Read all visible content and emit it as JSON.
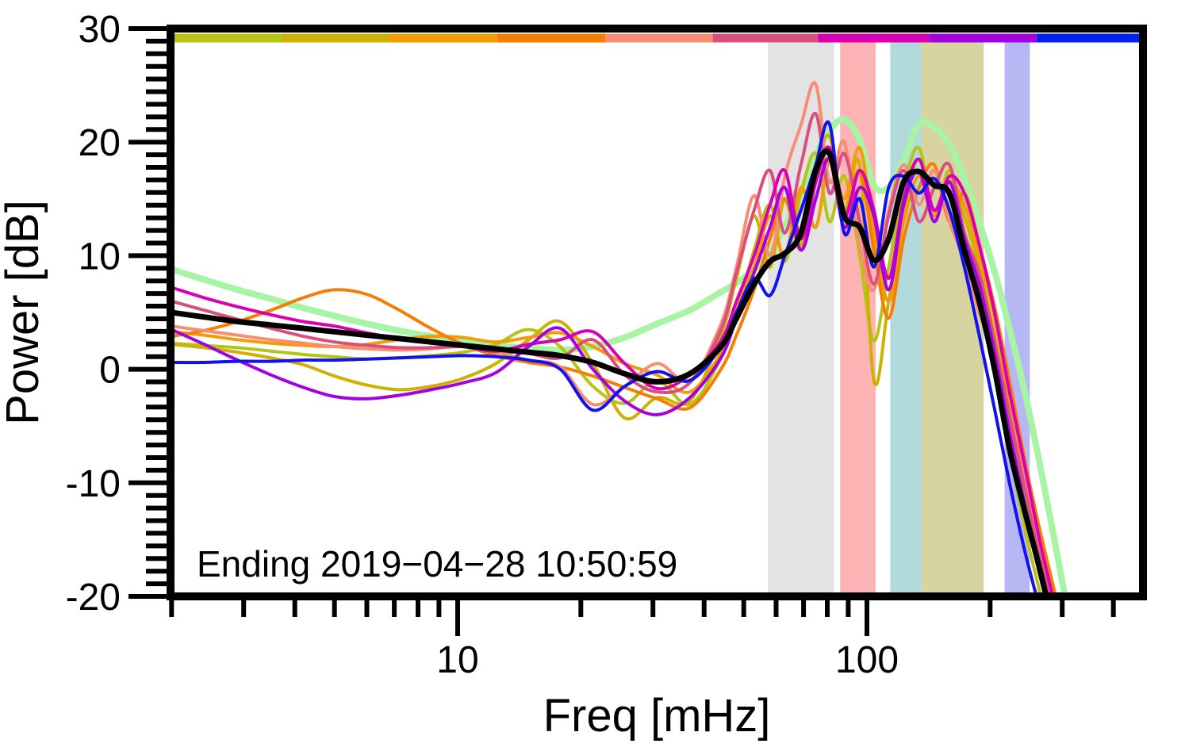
{
  "figure": {
    "background": "#ffffff",
    "annotation": "Ending 2019−04−28 10:50:59",
    "xlabel": "Freq [mHz]",
    "ylabel": "Power [dB]"
  },
  "chart_data": {
    "type": "line",
    "title": "",
    "xlabel": "Freq [mHz]",
    "ylabel": "Power [dB]",
    "x_scale": "log",
    "x_range_mhz": [
      2,
      472
    ],
    "y_range_db": [
      -20,
      30
    ],
    "grid": false,
    "legend": "none",
    "x_ticks_major": [
      10,
      100
    ],
    "x_tick_labels": [
      "10",
      "100"
    ],
    "x_ticks_minor": [
      2,
      3,
      4,
      5,
      6,
      7,
      8,
      9,
      20,
      30,
      40,
      50,
      60,
      70,
      80,
      90,
      200,
      300,
      400
    ],
    "y_ticks_major": [
      30,
      20,
      10,
      0,
      -10,
      -20
    ],
    "y_tick_labels": [
      "30",
      "20",
      "10",
      "0",
      "-10",
      "-20"
    ],
    "y_minor_intervals_per_major": 9,
    "x_mhz": [
      2.0,
      2.4,
      2.9,
      3.5,
      4.2,
      5.0,
      6.0,
      7.2,
      8.6,
      10.3,
      12.4,
      14.9,
      17.8,
      21.4,
      25.6,
      30.7,
      36.9,
      44,
      48,
      53,
      58,
      63,
      69,
      75,
      81,
      88,
      96,
      104,
      113,
      123,
      134,
      146,
      159,
      173,
      188,
      205,
      223,
      243,
      264,
      287,
      312
    ],
    "series": [
      {
        "name": "reference-envelope",
        "color": "#a7f4a5",
        "width": 8,
        "values": [
          8.8,
          7.9,
          7.0,
          6.2,
          5.4,
          4.7,
          4.0,
          3.4,
          2.9,
          2.5,
          2.1,
          1.9,
          1.7,
          2.0,
          2.8,
          4.0,
          5.2,
          6.8,
          7.6,
          8.8,
          10.4,
          12.6,
          15.6,
          18.8,
          21.0,
          22.0,
          20.2,
          16.2,
          16.0,
          18.4,
          21.6,
          21.3,
          19.8,
          16.8,
          13.0,
          8.6,
          3.6,
          -2.0,
          -8.2,
          -15.0,
          -22.0
        ]
      },
      {
        "name": "segment-1",
        "color": "#b7c414",
        "width": 4,
        "values": [
          2.3,
          2.1,
          1.9,
          1.6,
          1.3,
          1.1,
          0.9,
          1.0,
          1.2,
          1.5,
          2.2,
          3.5,
          2.0,
          -1.5,
          -3.0,
          -1.0,
          -3.1,
          1.0,
          5.0,
          10.5,
          14.5,
          9.5,
          15.5,
          19.0,
          13.0,
          17.0,
          10.0,
          2.5,
          9.0,
          16.0,
          19.5,
          13.5,
          17.5,
          12.0,
          7.0,
          0.5,
          -7.0,
          -14.0,
          -19.5,
          -25.0,
          -30.0
        ]
      },
      {
        "name": "segment-2",
        "color": "#cfb005",
        "width": 4,
        "values": [
          2.2,
          1.9,
          1.5,
          1.0,
          0.4,
          -0.6,
          -1.4,
          -1.8,
          -1.5,
          -0.8,
          0.5,
          2.6,
          4.2,
          0.5,
          -4.3,
          -2.5,
          -2.8,
          3.0,
          8.0,
          13.5,
          9.0,
          15.0,
          11.0,
          17.5,
          20.5,
          14.0,
          18.0,
          -1.0,
          6.0,
          14.0,
          18.5,
          13.5,
          17.0,
          13.5,
          9.0,
          3.0,
          -4.0,
          -11.0,
          -17.0,
          -22.0,
          -27.0
        ]
      },
      {
        "name": "segment-3",
        "color": "#f29c07",
        "width": 4,
        "values": [
          3.3,
          3.0,
          2.6,
          2.3,
          2.1,
          2.0,
          2.2,
          2.6,
          2.9,
          2.8,
          2.4,
          2.8,
          3.2,
          2.0,
          0.5,
          -0.5,
          -2.0,
          1.5,
          5.5,
          9.0,
          13.5,
          10.0,
          16.0,
          12.5,
          18.5,
          15.0,
          19.5,
          12.0,
          6.0,
          13.0,
          17.0,
          13.5,
          16.5,
          14.5,
          10.0,
          4.5,
          -2.5,
          -9.0,
          -15.0,
          -20.5,
          -26.0
        ]
      },
      {
        "name": "segment-4",
        "color": "#f57e04",
        "width": 4,
        "values": [
          2.9,
          3.4,
          4.2,
          5.2,
          6.3,
          7.0,
          6.6,
          5.2,
          3.6,
          2.2,
          1.2,
          0.6,
          0.2,
          -0.6,
          -1.6,
          -2.6,
          -3.4,
          0.0,
          3.0,
          7.0,
          11.5,
          15.0,
          10.5,
          16.5,
          19.0,
          13.5,
          17.5,
          10.5,
          4.5,
          11.5,
          16.0,
          18.0,
          13.0,
          15.5,
          11.0,
          5.5,
          -1.0,
          -8.0,
          -14.0,
          -19.5,
          -25.0
        ]
      },
      {
        "name": "segment-5",
        "color": "#f98d73",
        "width": 4,
        "values": [
          3.8,
          3.4,
          3.0,
          2.6,
          2.3,
          2.0,
          1.8,
          1.7,
          1.8,
          2.0,
          1.5,
          0.8,
          0.2,
          -3.1,
          -1.5,
          0.5,
          -1.0,
          4.0,
          9.0,
          15.3,
          10.0,
          17.0,
          21.5,
          25.1,
          16.5,
          20.0,
          11.0,
          7.0,
          14.0,
          18.0,
          14.5,
          17.5,
          13.0,
          9.5,
          5.0,
          1.0,
          -4.5,
          -9.5,
          -16.0,
          -21.0,
          -26.0
        ]
      },
      {
        "name": "segment-6",
        "color": "#d94f7e",
        "width": 4,
        "values": [
          6.0,
          5.2,
          4.4,
          3.6,
          2.9,
          2.4,
          2.1,
          1.9,
          1.9,
          2.0,
          1.8,
          1.4,
          1.0,
          2.6,
          -0.5,
          -2.0,
          -1.2,
          3.5,
          8.5,
          14.0,
          17.5,
          12.0,
          18.0,
          22.5,
          15.5,
          19.0,
          13.0,
          7.5,
          13.5,
          17.5,
          13.0,
          16.0,
          18.0,
          12.0,
          8.5,
          2.5,
          -4.0,
          -10.5,
          -16.5,
          -21.5,
          -26.0
        ]
      },
      {
        "name": "segment-7",
        "color": "#d800b2",
        "width": 4,
        "values": [
          7.2,
          6.3,
          5.5,
          4.8,
          4.2,
          3.8,
          3.2,
          2.7,
          2.3,
          2.0,
          1.6,
          2.2,
          2.6,
          3.3,
          0.5,
          -1.7,
          -0.5,
          2.5,
          6.0,
          10.0,
          14.5,
          17.5,
          11.5,
          16.5,
          19.5,
          13.5,
          17.5,
          14.0,
          8.0,
          15.0,
          18.5,
          14.0,
          17.0,
          15.5,
          11.0,
          5.0,
          -2.0,
          -8.5,
          -15.0,
          -20.5,
          -25.0
        ]
      },
      {
        "name": "segment-8",
        "color": "#a403e0",
        "width": 4,
        "values": [
          3.5,
          2.2,
          0.8,
          -0.5,
          -1.6,
          -2.4,
          -2.6,
          -2.3,
          -1.8,
          -1.2,
          -0.3,
          2.0,
          3.6,
          0.0,
          -2.8,
          -4.0,
          -2.5,
          1.0,
          4.5,
          8.5,
          12.5,
          16.0,
          10.5,
          15.0,
          18.5,
          12.5,
          16.0,
          13.5,
          7.0,
          14.5,
          17.5,
          13.0,
          16.5,
          11.5,
          7.5,
          1.5,
          -5.5,
          -12.0,
          -18.0,
          -23.0,
          -28.0
        ]
      },
      {
        "name": "segment-9",
        "color": "#1212ef",
        "width": 4,
        "values": [
          0.6,
          0.6,
          0.7,
          0.7,
          0.8,
          0.8,
          0.9,
          1.0,
          1.1,
          1.2,
          1.1,
          0.8,
          0.0,
          -3.6,
          -1.5,
          -0.2,
          -1.0,
          2.0,
          5.0,
          8.0,
          6.5,
          10.0,
          14.0,
          18.0,
          21.6,
          12.0,
          15.0,
          9.0,
          16.0,
          17.0,
          15.5,
          16.8,
          14.0,
          9.0,
          3.0,
          -3.5,
          -10.0,
          -16.0,
          -21.0,
          -26.0,
          -30.0
        ]
      },
      {
        "name": "mean-spectrum",
        "color": "#000000",
        "width": 7,
        "values": [
          5.0,
          4.6,
          4.2,
          3.9,
          3.6,
          3.3,
          3.0,
          2.7,
          2.4,
          2.1,
          1.8,
          1.5,
          1.2,
          0.6,
          -0.4,
          -1.1,
          -0.4,
          2.0,
          4.5,
          7.5,
          9.5,
          10.2,
          12.0,
          17.5,
          19.0,
          13.5,
          12.5,
          9.6,
          11.5,
          16.5,
          17.4,
          16.2,
          15.5,
          10.5,
          6.0,
          0.0,
          -7.0,
          -12.5,
          -17.5,
          -23.0,
          -28.0
        ]
      }
    ],
    "bands": [
      {
        "name": "band-gray",
        "from_mhz": 57.3,
        "to_mhz": 83.2,
        "color": "#e3e3e3"
      },
      {
        "name": "band-pink",
        "from_mhz": 86.0,
        "to_mhz": 105.0,
        "color": "#fcb3b3"
      },
      {
        "name": "band-teal",
        "from_mhz": 114.0,
        "to_mhz": 136.0,
        "color": "#b2d9dc"
      },
      {
        "name": "band-olive",
        "from_mhz": 136.0,
        "to_mhz": 193.0,
        "color": "#d8d4a0"
      },
      {
        "name": "band-lavender",
        "from_mhz": 217.0,
        "to_mhz": 250.0,
        "color": "#b7b7f3"
      }
    ],
    "colorbar_segments": [
      {
        "from_mhz": 2.0,
        "to_mhz": 3.72,
        "color": "#b7c414"
      },
      {
        "from_mhz": 3.72,
        "to_mhz": 6.81,
        "color": "#cfb005"
      },
      {
        "from_mhz": 6.81,
        "to_mhz": 12.5,
        "color": "#f29c07"
      },
      {
        "from_mhz": 12.5,
        "to_mhz": 23.0,
        "color": "#f57e04"
      },
      {
        "from_mhz": 23.0,
        "to_mhz": 42.0,
        "color": "#f98d73"
      },
      {
        "from_mhz": 42.0,
        "to_mhz": 76.0,
        "color": "#d94f7e"
      },
      {
        "from_mhz": 76.0,
        "to_mhz": 142.0,
        "color": "#d800b2"
      },
      {
        "from_mhz": 142.0,
        "to_mhz": 260.0,
        "color": "#a403e0"
      },
      {
        "from_mhz": 260.0,
        "to_mhz": 472.0,
        "color": "#0022ee"
      }
    ]
  }
}
